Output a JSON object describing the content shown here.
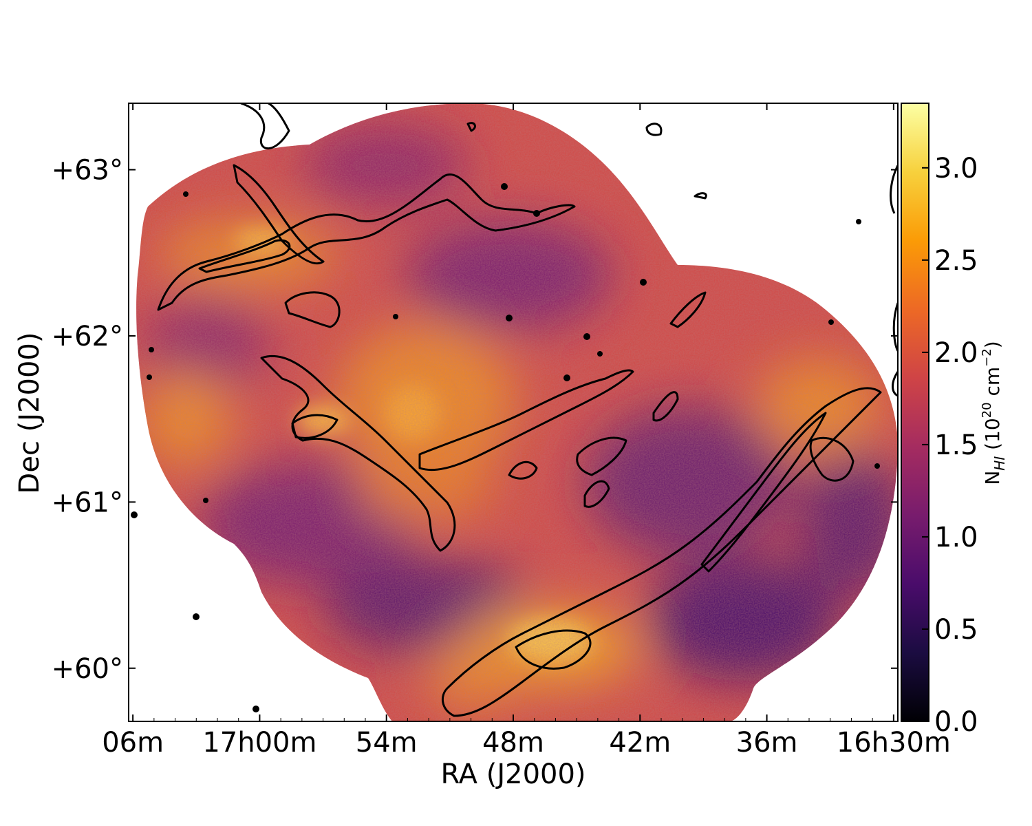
{
  "chart_data": {
    "type": "heatmap",
    "title": "",
    "xlabel": "RA (J2000)",
    "ylabel": "Dec (J2000)",
    "x_ticks": [
      {
        "label": "06m",
        "ra_min": 1146
      },
      {
        "label": "17h00m",
        "ra_min": 1140
      },
      {
        "label": "54m",
        "ra_min": 1134
      },
      {
        "label": "48m",
        "ra_min": 1128
      },
      {
        "label": "42m",
        "ra_min": 1122
      },
      {
        "label": "36m",
        "ra_min": 1116
      },
      {
        "label": "16h30m",
        "ra_min": 1110
      }
    ],
    "xlim_ra_min": [
      1146.2,
      1109.8
    ],
    "y_ticks": [
      {
        "label": "+63°",
        "dec": 63.0
      },
      {
        "label": "+62°",
        "dec": 62.0
      },
      {
        "label": "+61°",
        "dec": 61.0
      },
      {
        "label": "+60°",
        "dec": 60.0
      }
    ],
    "ylim_dec": [
      59.68,
      63.4
    ],
    "colorbar": {
      "label": "N",
      "label_sub": "HI",
      "label_units_prefix": " (10",
      "label_units_exp": "20",
      "label_units_mid": " cm",
      "label_units_exp2": "−2",
      "label_units_suffix": ")",
      "colormap": "inferno",
      "vmin": 0.0,
      "vmax": 3.35,
      "ticks": [
        {
          "label": "0.0",
          "value": 0.0
        },
        {
          "label": "0.5",
          "value": 0.5
        },
        {
          "label": "1.0",
          "value": 1.0
        },
        {
          "label": "1.5",
          "value": 1.5
        },
        {
          "label": "2.0",
          "value": 2.0
        },
        {
          "label": "2.5",
          "value": 2.5
        },
        {
          "label": "3.0",
          "value": 3.0
        }
      ]
    },
    "contours": "black contours of N_HI overlaid on filamentary structures",
    "grid": false
  },
  "colors": {
    "inferno_stops": [
      "#000004",
      "#1b0c41",
      "#4a0c6b",
      "#781c6d",
      "#a52c60",
      "#cf4446",
      "#ed6925",
      "#fb9b06",
      "#f7d13d",
      "#fcffa4"
    ]
  }
}
